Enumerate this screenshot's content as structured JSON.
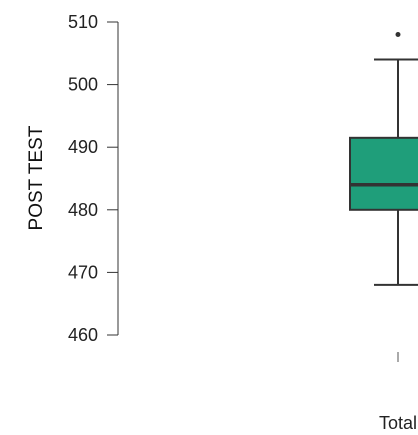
{
  "chart_data": {
    "type": "box",
    "title": "",
    "xlabel": "",
    "ylabel": "POST TEST",
    "ylim": [
      460,
      510
    ],
    "yticks": [
      460,
      470,
      480,
      490,
      500,
      510
    ],
    "categories": [
      "Total"
    ],
    "boxes": [
      {
        "category": "Total",
        "whisker_low": 468,
        "q1": 480,
        "median": 484,
        "q3": 491.5,
        "whisker_high": 504,
        "outliers": [
          508
        ]
      }
    ],
    "colors": {
      "box_fill": "#1f9e7a",
      "stroke": "#333333"
    },
    "grid": false,
    "legend": "none"
  }
}
